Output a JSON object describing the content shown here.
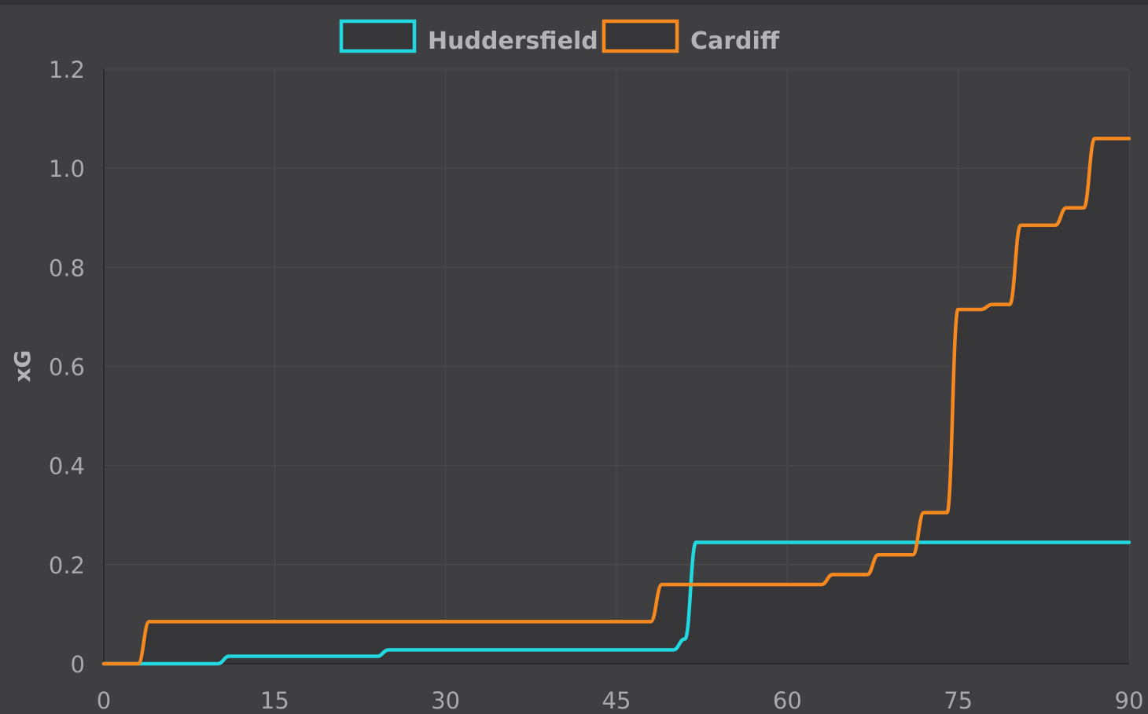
{
  "chart_data": {
    "type": "line",
    "title": "",
    "xlabel": "",
    "ylabel": "xG",
    "xlim": [
      0,
      90
    ],
    "ylim": [
      0,
      1.2
    ],
    "x_ticks": [
      "0",
      "15",
      "30",
      "45",
      "60",
      "75",
      "90"
    ],
    "y_ticks": [
      "0",
      "0.2",
      "0.4",
      "0.6",
      "0.8",
      "1.0",
      "1.2"
    ],
    "x_tick_values": [
      0,
      15,
      30,
      45,
      60,
      75,
      90
    ],
    "y_tick_values": [
      0,
      0.2,
      0.4,
      0.6,
      0.8,
      1.0,
      1.2
    ],
    "grid": true,
    "legend_position": "top-center",
    "series": [
      {
        "name": "Huddersfield",
        "color": "#22d8e0",
        "step_points": [
          [
            0,
            0
          ],
          [
            10.5,
            0.015
          ],
          [
            24.5,
            0.028
          ],
          [
            50.5,
            0.05
          ],
          [
            51.5,
            0.245
          ],
          [
            90,
            0.245
          ]
        ]
      },
      {
        "name": "Cardiff",
        "color": "#f5891f",
        "step_points": [
          [
            0,
            0
          ],
          [
            3.5,
            0.085
          ],
          [
            48.5,
            0.16
          ],
          [
            63.5,
            0.18
          ],
          [
            67.5,
            0.22
          ],
          [
            71.5,
            0.305
          ],
          [
            74.5,
            0.715
          ],
          [
            77.5,
            0.725
          ],
          [
            80,
            0.885
          ],
          [
            84,
            0.92
          ],
          [
            86.5,
            1.06
          ],
          [
            90,
            1.06
          ]
        ]
      }
    ]
  }
}
